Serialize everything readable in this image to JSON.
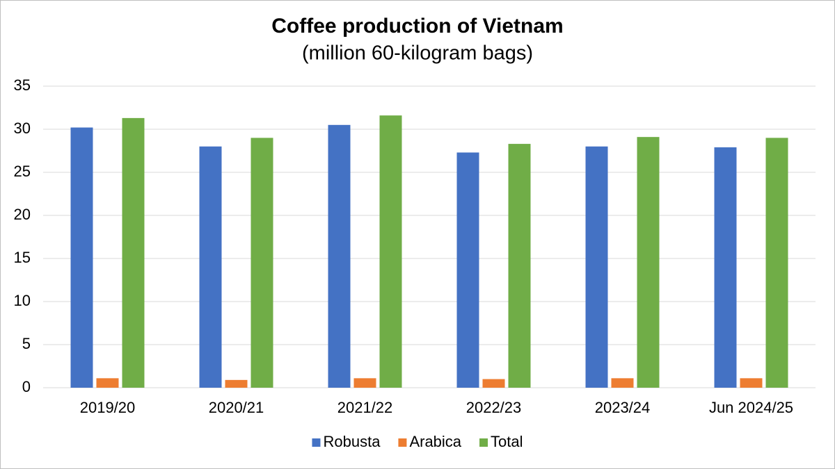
{
  "chart_data": {
    "type": "bar",
    "title": "Coffee production of Vietnam",
    "subtitle": "(million 60-kilogram bags)",
    "categories": [
      "2019/20",
      "2020/21",
      "2021/22",
      "2022/23",
      "2023/24",
      "Jun 2024/25"
    ],
    "series": [
      {
        "name": "Robusta",
        "color": "#4472c4",
        "values": [
          30.2,
          28.0,
          30.5,
          27.3,
          28.0,
          27.9
        ]
      },
      {
        "name": "Arabica",
        "color": "#ed7d31",
        "values": [
          1.1,
          0.9,
          1.1,
          1.0,
          1.1,
          1.1
        ]
      },
      {
        "name": "Total",
        "color": "#70ad47",
        "values": [
          31.3,
          29.0,
          31.6,
          28.3,
          29.1,
          29.0
        ]
      }
    ],
    "ylim": [
      0,
      35
    ],
    "yticks": [
      0,
      5,
      10,
      15,
      20,
      25,
      30,
      35
    ],
    "grid": true,
    "legend": "bottom"
  }
}
